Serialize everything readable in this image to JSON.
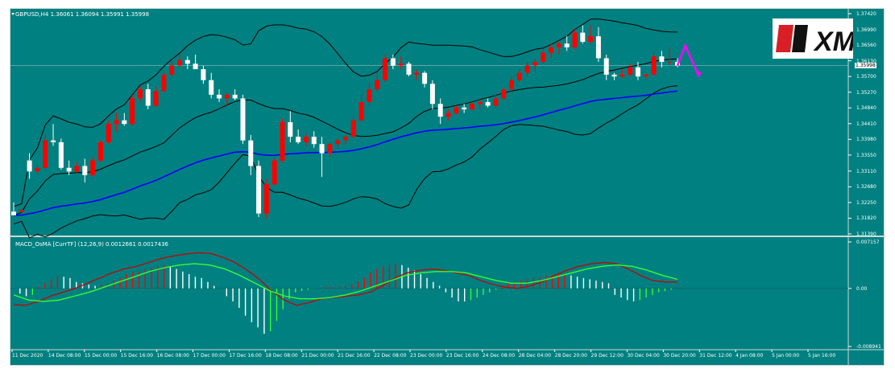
{
  "chart_window": {
    "title": "GBPUSD,H4  1.36061 1.36094 1.35991 1.35998",
    "bid_price_tag": "1.35998",
    "logo_text": "XM"
  },
  "indicator": {
    "title": "MACD_OsMA [CurrTF] (12,26,9) 0.0012661 0.0017436"
  },
  "colors": {
    "background": "#008080",
    "bull_candle": "#ff0000",
    "bear_candle": "#ffffff",
    "bollinger": "#000000",
    "moving_average": "#0000ff",
    "macd_line": "#b01010",
    "signal_line": "#33ff33",
    "forecast_arrow": "#ff00ff"
  },
  "chart_data": [
    {
      "type": "candlestick",
      "title": "GBPUSD,H4",
      "y_ticks": [
        "1.37420",
        "1.36990",
        "1.36560",
        "1.36130",
        "1.35700",
        "1.35270",
        "1.34840",
        "1.34410",
        "1.33980",
        "1.33550",
        "1.33110",
        "1.32680",
        "1.32250",
        "1.31820",
        "1.31390"
      ],
      "ylim": [
        1.3139,
        1.3742
      ],
      "x_ticks": [
        "11 Dec 2020",
        "14 Dec 08:00",
        "15 Dec 00:00",
        "15 Dec 16:00",
        "16 Dec 08:00",
        "17 Dec 00:00",
        "17 Dec 16:00",
        "18 Dec 08:00",
        "21 Dec 00:00",
        "21 Dec 16:00",
        "22 Dec 08:00",
        "23 Dec 00:00",
        "23 Dec 16:00",
        "24 Dec 08:00",
        "28 Dec 04:00",
        "28 Dec 20:00",
        "29 Dec 12:00",
        "30 Dec 04:00",
        "30 Dec 20:00",
        "31 Dec 12:00",
        "4 Jan 08:00",
        "5 Jan 00:00",
        "5 Jan 16:00"
      ],
      "candles": [
        [
          1.32,
          1.3225,
          1.319,
          1.319
        ],
        [
          1.32,
          1.321,
          1.3195,
          1.3205
        ],
        [
          1.334,
          1.336,
          1.329,
          1.331
        ],
        [
          1.331,
          1.333,
          1.33,
          1.332
        ],
        [
          1.332,
          1.341,
          1.3315,
          1.3395
        ],
        [
          1.3395,
          1.344,
          1.338,
          1.339
        ],
        [
          1.339,
          1.34,
          1.3315,
          1.332
        ],
        [
          1.332,
          1.334,
          1.33,
          1.331
        ],
        [
          1.331,
          1.3335,
          1.3305,
          1.3325
        ],
        [
          1.3325,
          1.3345,
          1.328,
          1.33
        ],
        [
          1.33,
          1.335,
          1.3295,
          1.334
        ],
        [
          1.334,
          1.3395,
          1.3335,
          1.339
        ],
        [
          1.339,
          1.345,
          1.3385,
          1.344
        ],
        [
          1.344,
          1.347,
          1.342,
          1.345
        ],
        [
          1.345,
          1.347,
          1.3435,
          1.344
        ],
        [
          1.344,
          1.352,
          1.3435,
          1.351
        ],
        [
          1.351,
          1.3545,
          1.35,
          1.3535
        ],
        [
          1.3535,
          1.355,
          1.348,
          1.349
        ],
        [
          1.349,
          1.3545,
          1.3485,
          1.353
        ],
        [
          1.353,
          1.3585,
          1.3525,
          1.3575
        ],
        [
          1.3575,
          1.361,
          1.357,
          1.36
        ],
        [
          1.36,
          1.363,
          1.3595,
          1.3615
        ],
        [
          1.3615,
          1.3625,
          1.359,
          1.3605
        ],
        [
          1.3605,
          1.363,
          1.359,
          1.359
        ],
        [
          1.359,
          1.36,
          1.355,
          1.356
        ],
        [
          1.356,
          1.358,
          1.351,
          1.352
        ],
        [
          1.352,
          1.3535,
          1.35,
          1.351
        ],
        [
          1.351,
          1.3525,
          1.349,
          1.352
        ],
        [
          1.352,
          1.3535,
          1.3505,
          1.351
        ],
        [
          1.351,
          1.352,
          1.3385,
          1.3395
        ],
        [
          1.3395,
          1.341,
          1.33,
          1.3325
        ],
        [
          1.3325,
          1.334,
          1.3185,
          1.3195
        ],
        [
          1.3195,
          1.329,
          1.318,
          1.3275
        ],
        [
          1.3275,
          1.3345,
          1.327,
          1.334
        ],
        [
          1.334,
          1.3455,
          1.3335,
          1.3445
        ],
        [
          1.3445,
          1.3475,
          1.339,
          1.3405
        ],
        [
          1.3405,
          1.3425,
          1.3385,
          1.339
        ],
        [
          1.339,
          1.3415,
          1.338,
          1.3405
        ],
        [
          1.3405,
          1.342,
          1.3375,
          1.3385
        ],
        [
          1.3385,
          1.3405,
          1.3295,
          1.336
        ],
        [
          1.336,
          1.339,
          1.335,
          1.3385
        ],
        [
          1.3385,
          1.34,
          1.3375,
          1.3395
        ],
        [
          1.3395,
          1.341,
          1.3385,
          1.3405
        ],
        [
          1.3405,
          1.346,
          1.34,
          1.345
        ],
        [
          1.345,
          1.352,
          1.3445,
          1.35
        ],
        [
          1.35,
          1.3555,
          1.349,
          1.3535
        ],
        [
          1.3535,
          1.358,
          1.353,
          1.356
        ],
        [
          1.356,
          1.363,
          1.3555,
          1.362
        ],
        [
          1.362,
          1.363,
          1.359,
          1.36
        ],
        [
          1.36,
          1.3625,
          1.359,
          1.3605
        ],
        [
          1.3605,
          1.361,
          1.357,
          1.3575
        ],
        [
          1.3575,
          1.359,
          1.356,
          1.358
        ],
        [
          1.358,
          1.3585,
          1.354,
          1.355
        ],
        [
          1.355,
          1.356,
          1.348,
          1.3495
        ],
        [
          1.3495,
          1.351,
          1.344,
          1.346
        ],
        [
          1.346,
          1.348,
          1.345,
          1.347
        ],
        [
          1.347,
          1.349,
          1.3465,
          1.3485
        ],
        [
          1.3485,
          1.3495,
          1.347,
          1.348
        ],
        [
          1.348,
          1.35,
          1.3475,
          1.3495
        ],
        [
          1.3495,
          1.351,
          1.348,
          1.35
        ],
        [
          1.35,
          1.351,
          1.3485,
          1.349
        ],
        [
          1.349,
          1.352,
          1.3485,
          1.351
        ],
        [
          1.351,
          1.354,
          1.3505,
          1.3535
        ],
        [
          1.3535,
          1.357,
          1.353,
          1.356
        ],
        [
          1.356,
          1.359,
          1.3555,
          1.358
        ],
        [
          1.358,
          1.361,
          1.357,
          1.36
        ],
        [
          1.36,
          1.362,
          1.3585,
          1.361
        ],
        [
          1.361,
          1.3645,
          1.3605,
          1.3635
        ],
        [
          1.3635,
          1.366,
          1.362,
          1.365
        ],
        [
          1.365,
          1.3665,
          1.363,
          1.366
        ],
        [
          1.366,
          1.368,
          1.364,
          1.365
        ],
        [
          1.365,
          1.37,
          1.3645,
          1.369
        ],
        [
          1.369,
          1.371,
          1.366,
          1.3665
        ],
        [
          1.3665,
          1.371,
          1.366,
          1.368
        ],
        [
          1.368,
          1.3705,
          1.361,
          1.362
        ],
        [
          1.362,
          1.363,
          1.356,
          1.3575
        ],
        [
          1.3575,
          1.358,
          1.356,
          1.357
        ],
        [
          1.357,
          1.359,
          1.3565,
          1.3575
        ],
        [
          1.3575,
          1.3605,
          1.357,
          1.3595
        ],
        [
          1.3595,
          1.361,
          1.356,
          1.357
        ],
        [
          1.357,
          1.358,
          1.356,
          1.3575
        ],
        [
          1.3575,
          1.3635,
          1.357,
          1.3625
        ],
        [
          1.3625,
          1.364,
          1.3595,
          1.361
        ],
        [
          1.361,
          1.365,
          1.36,
          1.361
        ],
        [
          1.361,
          1.362,
          1.3595,
          1.36
        ]
      ],
      "forecast_path": [
        [
          0,
          1.36
        ],
        [
          3,
          1.3655
        ],
        [
          8,
          1.3575
        ]
      ]
    },
    {
      "type": "bar",
      "title": "MACD_OsMA [CurrTF] (12,26,9)",
      "y_ticks": [
        "0.007157",
        "0.00",
        "-0.008941"
      ],
      "ylim": [
        -0.008941,
        0.007157
      ],
      "histogram": [
        0.0,
        -0.0008,
        -0.0012,
        -0.001,
        0.0002,
        0.0008,
        0.0014,
        0.002,
        0.0018,
        0.0016,
        0.001,
        0.0008,
        0.0006,
        0.0004,
        0.0006,
        0.0008,
        0.0012,
        0.0016,
        0.0022,
        0.0024,
        0.0026,
        0.003,
        0.0032,
        0.0034,
        0.0036,
        0.0034,
        0.003,
        0.0026,
        0.0022,
        0.0018,
        0.0016,
        0.001,
        0.0004,
        0.0,
        -0.0012,
        -0.002,
        -0.003,
        -0.0042,
        -0.0052,
        -0.006,
        -0.007,
        -0.0066,
        -0.005,
        -0.0032,
        -0.0016,
        -0.0006,
        -0.0004,
        -0.0002,
        0.0,
        0.0,
        0.0002,
        0.0002,
        0.0003,
        0.0004,
        0.0006,
        0.001,
        0.0016,
        0.0024,
        0.003,
        0.0034,
        0.0036,
        0.0038,
        0.0036,
        0.0032,
        0.0028,
        0.0022,
        0.0016,
        0.001,
        0.0004,
        -0.0006,
        -0.0014,
        -0.002,
        -0.002,
        -0.0018,
        -0.0014,
        -0.001,
        -0.0006,
        -0.0002,
        0.0004,
        0.0008,
        0.001,
        0.0012,
        0.0014,
        0.0016,
        0.0018,
        0.002,
        0.002,
        0.0022,
        0.0022,
        0.002,
        0.0018,
        0.0016,
        0.0014,
        0.0012,
        0.001,
        0.0008,
        -0.001,
        -0.0014,
        -0.0018,
        -0.002,
        -0.0018,
        -0.0014,
        -0.001,
        -0.0006,
        -0.0004,
        -0.0002,
        0.0002
      ],
      "macd_line": [
        -0.0025,
        -0.0026,
        -0.002,
        -0.0012,
        -0.0006,
        0.0,
        0.0008,
        0.0016,
        0.0024,
        0.003,
        0.0034,
        0.004,
        0.0046,
        0.005,
        0.0053,
        0.0055,
        0.0054,
        0.0048,
        0.004,
        0.0028,
        0.0014,
        -0.0004,
        -0.0018,
        -0.0026,
        -0.0022,
        -0.0016,
        -0.0014,
        -0.0012,
        -0.001,
        -0.0006,
        0.0004,
        0.0016,
        0.0024,
        0.0028,
        0.003,
        0.0028,
        0.0024,
        0.002,
        0.0012,
        0.0006,
        0.0002,
        0.0,
        0.0004,
        0.001,
        0.002,
        0.0028,
        0.0034,
        0.0038,
        0.004,
        0.0038,
        0.003,
        0.002,
        0.0012,
        0.001,
        0.001
      ],
      "signal_line": [
        -0.001,
        -0.0018,
        -0.002,
        -0.0018,
        -0.0012,
        -0.0006,
        0.0002,
        0.001,
        0.0018,
        0.0026,
        0.0032,
        0.0036,
        0.0038,
        0.0036,
        0.003,
        0.002,
        0.0008,
        -0.0004,
        -0.0012,
        -0.0016,
        -0.0016,
        -0.0014,
        -0.001,
        -0.0004,
        0.0004,
        0.0012,
        0.002,
        0.0024,
        0.0026,
        0.0026,
        0.0024,
        0.0018,
        0.0012,
        0.0008,
        0.0008,
        0.0012,
        0.0018,
        0.0024,
        0.003,
        0.0034,
        0.0036,
        0.0034,
        0.0028,
        0.002,
        0.0014
      ]
    }
  ]
}
